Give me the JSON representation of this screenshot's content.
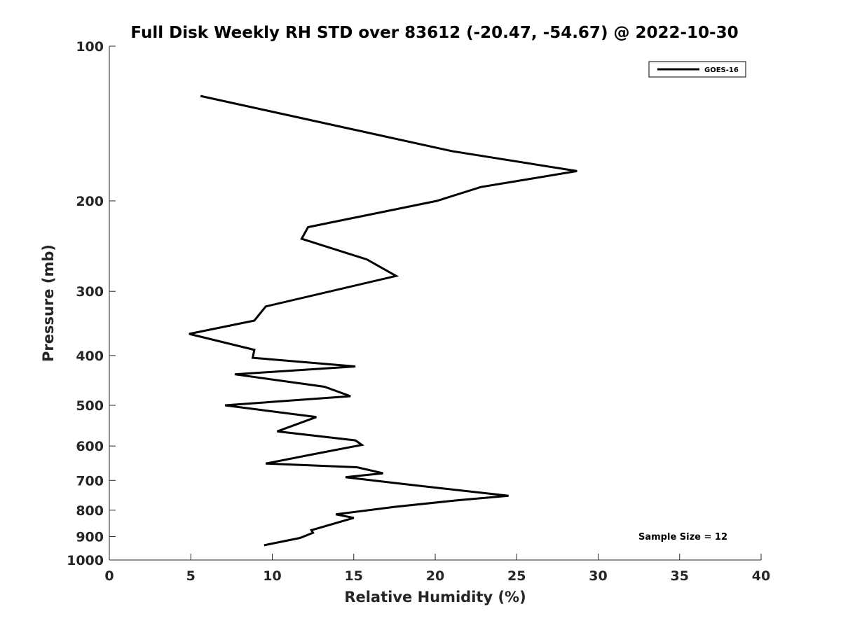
{
  "chart_data": {
    "type": "line",
    "title": "Full Disk Weekly RH STD over 83612 (-20.47, -54.67) @ 2022-10-30",
    "xlabel": "Relative Humidity (%)",
    "ylabel": "Pressure (mb)",
    "xlim": [
      0,
      40
    ],
    "ylim": [
      100,
      1000
    ],
    "yscale": "log",
    "grid": false,
    "x_ticks": [
      0,
      5,
      10,
      15,
      20,
      25,
      30,
      35,
      40
    ],
    "y_ticks": [
      100,
      200,
      300,
      400,
      500,
      600,
      700,
      800,
      900,
      1000
    ],
    "legend": {
      "position": "top-right",
      "entries": [
        "GOES-16"
      ]
    },
    "annotations": [
      "Sample Size = 12"
    ],
    "colors": {
      "line": "#000000",
      "axis": "#262626"
    },
    "series": [
      {
        "name": "GOES-16",
        "x": [
          5.6,
          21.0,
          28.7,
          22.8,
          20.1,
          12.2,
          11.8,
          15.8,
          17.6,
          9.6,
          8.9,
          4.9,
          8.9,
          8.8,
          15.1,
          7.7,
          13.2,
          14.8,
          7.1,
          12.7,
          10.3,
          15.1,
          15.5,
          12.8,
          9.6,
          15.2,
          16.8,
          14.5,
          17.8,
          24.5,
          21.4,
          17.5,
          13.9,
          15.0,
          12.4,
          12.5,
          11.7,
          9.5
        ],
        "y": [
          125,
          160,
          175,
          188,
          200,
          225,
          237,
          260,
          280,
          321,
          342,
          363,
          390,
          404,
          420,
          435,
          460,
          480,
          500,
          527,
          562,
          585,
          597,
          620,
          649,
          660,
          678,
          690,
          710,
          750,
          765,
          788,
          815,
          828,
          875,
          885,
          906,
          936
        ]
      }
    ]
  }
}
